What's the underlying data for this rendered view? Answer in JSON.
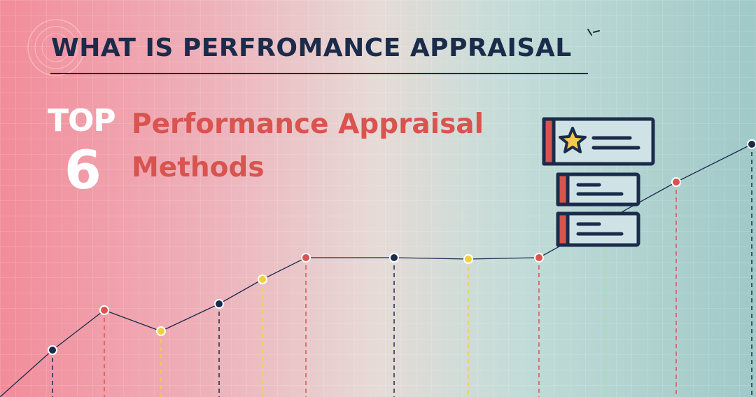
{
  "banner": {
    "heading": "WHAT IS PERFROMANCE APPRAISAL",
    "top_label": "TOP",
    "top_number": "6",
    "subtitle_line1": "Performance Appraisal",
    "subtitle_line2": "Methods"
  },
  "colors": {
    "navy": "#1b2b4b",
    "red": "#d9534f",
    "yellow": "#f0d040",
    "white": "#ffffff",
    "card_fill": "#cfe3e6"
  },
  "icons": {
    "badge_illustration": "star-rating-cards-icon",
    "burst": "sparkle-lines-icon"
  }
}
